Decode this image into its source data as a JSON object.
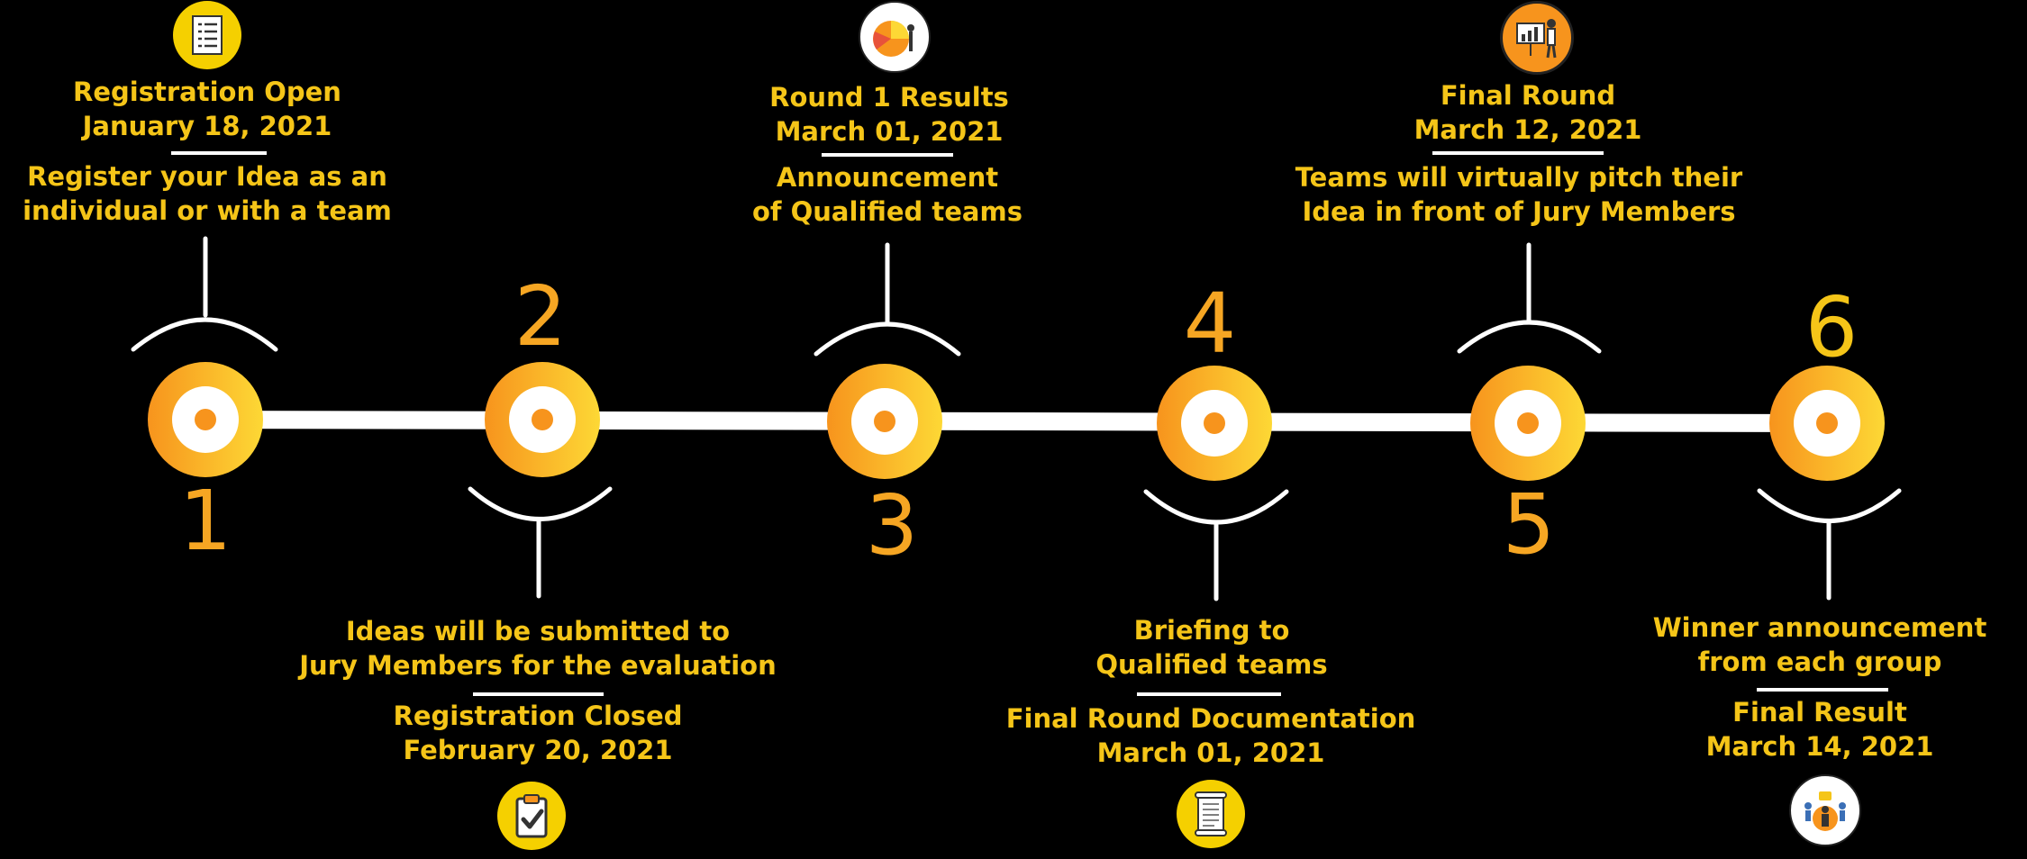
{
  "milestones": [
    {
      "number": "1",
      "title": "Registration Open",
      "date": "January 18, 2021",
      "desc1": "Register your Idea as an",
      "desc2": "individual or with a team",
      "icon": "checklist-icon"
    },
    {
      "number": "2",
      "title": "Registration Closed",
      "date": "February 20, 2021",
      "desc1": "Ideas will be submitted to",
      "desc2": "Jury Members for the evaluation",
      "icon": "clipboard-check-icon"
    },
    {
      "number": "3",
      "title": "Round 1 Results",
      "date": "March 01, 2021",
      "desc1": "Announcement",
      "desc2": "of Qualified teams",
      "icon": "pie-chart-presenter-icon"
    },
    {
      "number": "4",
      "title": "Final Round Documentation",
      "date": "March 01, 2021",
      "desc1": "Briefing to",
      "desc2": "Qualified teams",
      "icon": "scroll-document-icon"
    },
    {
      "number": "5",
      "title": "Final Round",
      "date": "March 12, 2021",
      "desc1": "Teams will virtually pitch their",
      "desc2": "Idea in front of Jury Members",
      "icon": "presentation-board-icon"
    },
    {
      "number": "6",
      "title": "Final Result",
      "date": "March 14, 2021",
      "desc1": "Winner announcement",
      "desc2": "from each group",
      "icon": "winner-team-icon"
    }
  ],
  "colors": {
    "accent_yellow": "#f5c518",
    "accent_orange": "#f6a623",
    "line": "#ffffff",
    "background": "#000000"
  }
}
